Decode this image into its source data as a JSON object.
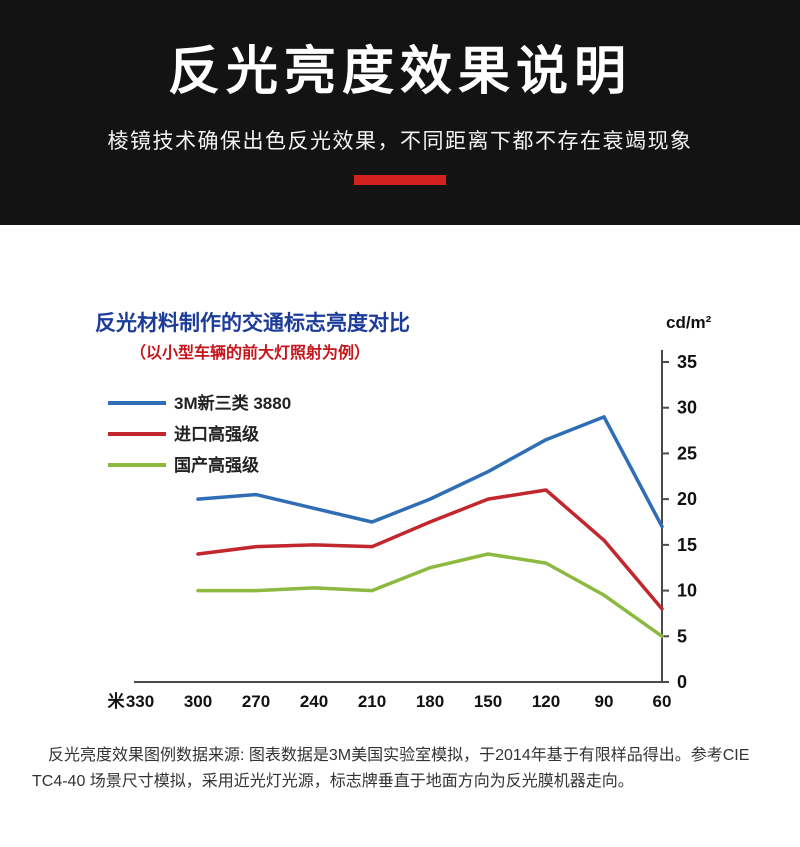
{
  "header": {
    "title": "反光亮度效果说明",
    "subtitle": "棱镜技术确保出色反光效果，不同距离下都不存在衰竭现象",
    "accent_color": "#d2211f"
  },
  "chart_data": {
    "type": "line",
    "title": "反光材料制作的交通标志亮度对比",
    "subtitle": "（以小型车辆的前大灯照射为例）",
    "title_color": "#1d3c9a",
    "subtitle_color": "#c4161c",
    "unit": "cd/m²",
    "x_unit": "米",
    "x_ticks": [
      330,
      300,
      270,
      240,
      210,
      180,
      150,
      120,
      90,
      60
    ],
    "categories": [
      300,
      270,
      240,
      210,
      180,
      150,
      120,
      90,
      60
    ],
    "y_ticks": [
      0,
      5,
      10,
      15,
      20,
      25,
      30,
      35
    ],
    "ylim": [
      0,
      35
    ],
    "grid": false,
    "legend_position": "top-left",
    "axis_color": "#4a4a4a",
    "series": [
      {
        "name": "3M新三类 3880",
        "color": "#2f6eb5",
        "values": [
          20,
          20.5,
          19,
          17.5,
          20,
          23,
          26.5,
          29,
          17
        ]
      },
      {
        "name": "进口高强级",
        "color": "#c1272d",
        "values": [
          14,
          14.8,
          15,
          14.8,
          17.5,
          20,
          21,
          15.5,
          8
        ]
      },
      {
        "name": "国产高强级",
        "color": "#8cb93f",
        "values": [
          10,
          10,
          10.3,
          10,
          12.5,
          14,
          13,
          9.5,
          5
        ]
      }
    ]
  },
  "caption": {
    "text": "反光亮度效果图例数据来源: 图表数据是3M美国实验室模拟，于2014年基于有限样品得出。参考CIE TC4-40 场景尺寸模拟，采用近光灯光源，标志牌垂直于地面方向为反光膜机器走向。"
  }
}
